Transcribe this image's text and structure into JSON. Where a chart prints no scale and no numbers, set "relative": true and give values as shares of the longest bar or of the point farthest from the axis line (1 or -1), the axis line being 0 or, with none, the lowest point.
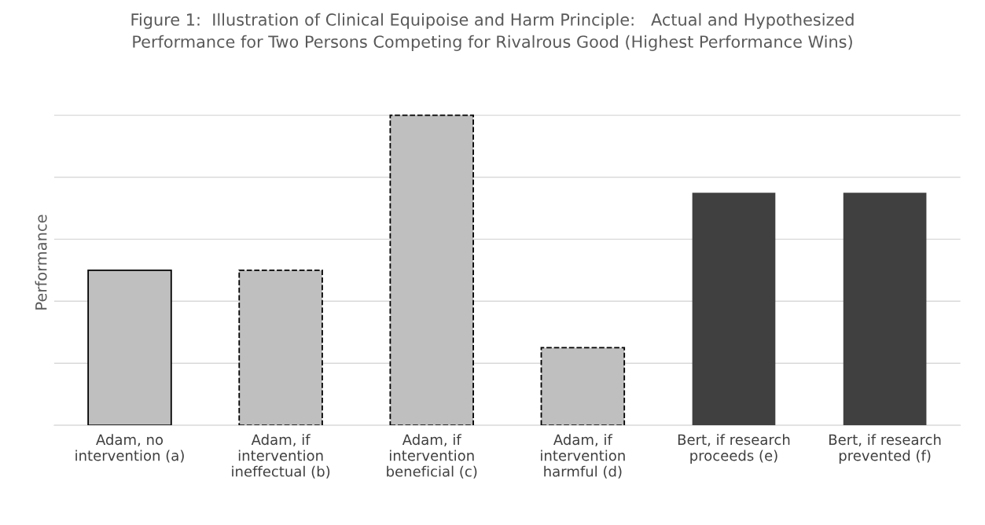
{
  "chart_data": {
    "type": "bar",
    "title": "Figure 1:  Illustration of Clinical Equipoise and Harm Principle:   Actual and Hypothesized\nPerformance for Two Persons Competing for Rivalrous Good (Highest Performance Wins)",
    "ylabel": "Performance",
    "categories": [
      "Adam, no\nintervention (a)",
      "Adam, if\nintervention\nineffectual (b)",
      "Adam, if\nintervention\nbeneficial (c)",
      "Adam, if\nintervention\nharmful (d)",
      "Bert, if research\nproceeds (e)",
      "Bert, if research\nprevented (f)"
    ],
    "relative": true,
    "grid": "y",
    "series": [
      {
        "color": "#bfbfbf",
        "line_style": "solid",
        "values": [
          0.5,
          null,
          null,
          null,
          null,
          null
        ]
      },
      {
        "color": "#bfbfbf",
        "line_style": "dashed",
        "values": [
          null,
          0.5,
          1,
          0.25,
          null,
          null
        ]
      },
      {
        "color": "#404040",
        "values": [
          null,
          null,
          null,
          null,
          0.75,
          0.75
        ]
      }
    ]
  }
}
